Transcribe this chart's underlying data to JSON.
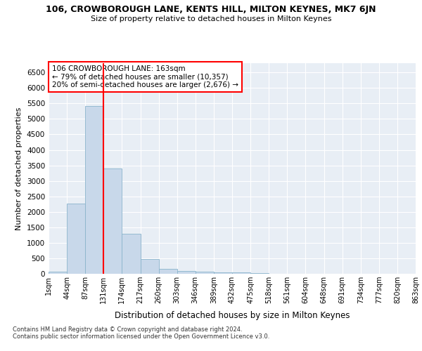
{
  "title": "106, CROWBOROUGH LANE, KENTS HILL, MILTON KEYNES, MK7 6JN",
  "subtitle": "Size of property relative to detached houses in Milton Keynes",
  "xlabel": "Distribution of detached houses by size in Milton Keynes",
  "ylabel": "Number of detached properties",
  "bar_values": [
    70,
    2270,
    5420,
    3400,
    1290,
    480,
    170,
    95,
    65,
    45,
    35,
    20,
    10,
    8,
    5,
    4,
    3,
    3,
    3,
    2
  ],
  "bar_labels": [
    "1sqm",
    "44sqm",
    "87sqm",
    "131sqm",
    "174sqm",
    "217sqm",
    "260sqm",
    "303sqm",
    "346sqm",
    "389sqm",
    "432sqm",
    "475sqm",
    "518sqm",
    "561sqm",
    "604sqm",
    "648sqm",
    "691sqm",
    "734sqm",
    "777sqm",
    "820sqm",
    "863sqm"
  ],
  "bar_color": "#c8d8ea",
  "bar_edge_color": "#8ab4cc",
  "vline_x": 3,
  "vline_color": "red",
  "annotation_box_text": "106 CROWBOROUGH LANE: 163sqm\n← 79% of detached houses are smaller (10,357)\n20% of semi-detached houses are larger (2,676) →",
  "ylim": [
    0,
    6800
  ],
  "yticks": [
    0,
    500,
    1000,
    1500,
    2000,
    2500,
    3000,
    3500,
    4000,
    4500,
    5000,
    5500,
    6000,
    6500
  ],
  "bg_color": "#e8eef5",
  "grid_color": "white",
  "footer_line1": "Contains HM Land Registry data © Crown copyright and database right 2024.",
  "footer_line2": "Contains public sector information licensed under the Open Government Licence v3.0."
}
